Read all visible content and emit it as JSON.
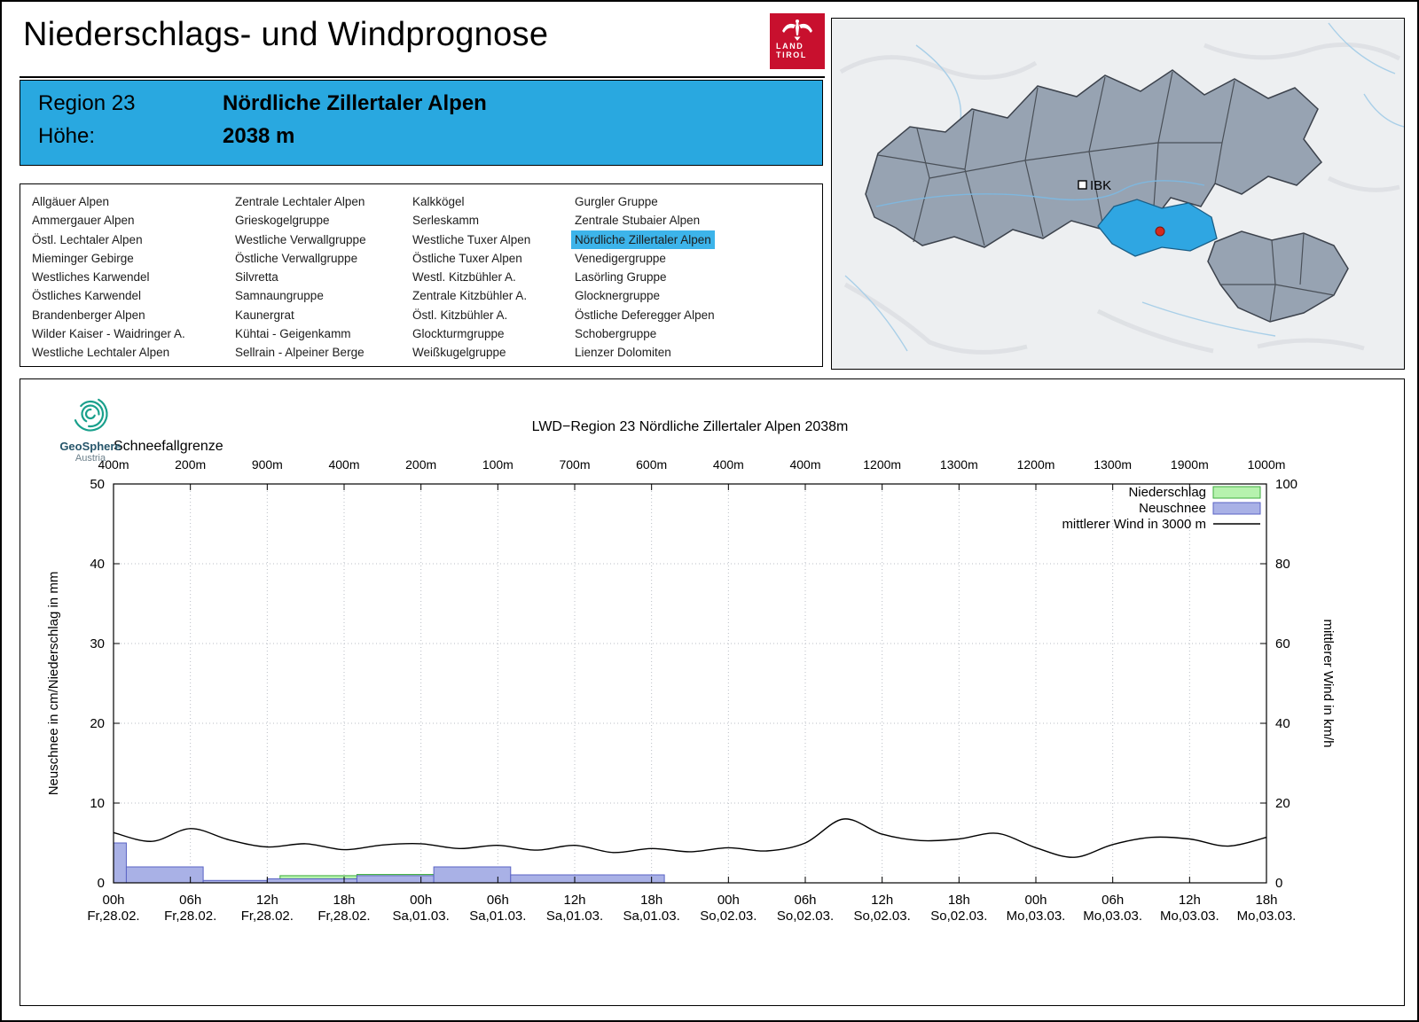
{
  "page": {
    "title": "Niederschlags- und Windprognose"
  },
  "logo": {
    "line1": "LAND",
    "line2": "TIROL"
  },
  "header": {
    "region_label": "Region 23",
    "region_name": "Nördliche Zillertaler Alpen",
    "altitude_label": "Höhe:",
    "altitude_value": "2038 m"
  },
  "map": {
    "city_label": "IBK",
    "highlight_color": "#2fa6e2",
    "region_fill": "#97a3b2"
  },
  "regions": {
    "selected": "Nördliche Zillertaler Alpen",
    "columns": [
      [
        "Allgäuer Alpen",
        "Ammergauer Alpen",
        "Östl. Lechtaler Alpen",
        "Mieminger Gebirge",
        "Westliches Karwendel",
        "Östliches Karwendel",
        "Brandenberger Alpen",
        "Wilder Kaiser - Waidringer A.",
        "Westliche Lechtaler Alpen"
      ],
      [
        "Zentrale Lechtaler Alpen",
        "Grieskogelgruppe",
        "Westliche Verwallgruppe",
        "Östliche Verwallgruppe",
        "Silvretta",
        "Samnaungruppe",
        "Kaunergrat",
        "Kühtai - Geigenkamm",
        "Sellrain - Alpeiner Berge"
      ],
      [
        "Kalkkögel",
        "Serleskamm",
        "Westliche Tuxer Alpen",
        "Östliche Tuxer Alpen",
        "Westl. Kitzbühler A.",
        "Zentrale Kitzbühler A.",
        "Östl. Kitzbühler A.",
        "Glockturmgruppe",
        "Weißkugelgruppe"
      ],
      [
        "Gurgler Gruppe",
        "Zentrale Stubaier Alpen",
        "Nördliche Zillertaler Alpen",
        "Venedigergruppe",
        "Lasörling Gruppe",
        "Glocknergruppe",
        "Östliche Deferegger Alpen",
        "Schobergruppe",
        "Lienzer Dolomiten"
      ]
    ]
  },
  "geosphere": {
    "name": "GeoSphere",
    "country": "Austria"
  },
  "chart_data": {
    "type": "bar",
    "title": "LWD−Region 23 Nördliche Zillertaler Alpen 2038m",
    "snowline_label": "Schneefallgrenze",
    "snowline_values": [
      "400m",
      "200m",
      "900m",
      "400m",
      "200m",
      "100m",
      "700m",
      "600m",
      "400m",
      "400m",
      "1200m",
      "1300m",
      "1200m",
      "1300m",
      "1900m",
      "1000m"
    ],
    "ylabel_left": "Neuschnee in cm/Niederschlag in mm",
    "ylabel_right": "mittlerer Wind in km/h",
    "ylim_left": [
      0,
      50
    ],
    "ylim_right": [
      0,
      100
    ],
    "grid": true,
    "legend_position": "top-right",
    "total_hours": 90,
    "x_ticks": [
      {
        "h": "00h",
        "d": "Fr,28.02."
      },
      {
        "h": "06h",
        "d": "Fr,28.02."
      },
      {
        "h": "12h",
        "d": "Fr,28.02."
      },
      {
        "h": "18h",
        "d": "Fr,28.02."
      },
      {
        "h": "00h",
        "d": "Sa,01.03."
      },
      {
        "h": "06h",
        "d": "Sa,01.03."
      },
      {
        "h": "12h",
        "d": "Sa,01.03."
      },
      {
        "h": "18h",
        "d": "Sa,01.03."
      },
      {
        "h": "00h",
        "d": "So,02.03."
      },
      {
        "h": "06h",
        "d": "So,02.03."
      },
      {
        "h": "12h",
        "d": "So,02.03."
      },
      {
        "h": "18h",
        "d": "So,02.03."
      },
      {
        "h": "00h",
        "d": "Mo,03.03."
      },
      {
        "h": "06h",
        "d": "Mo,03.03."
      },
      {
        "h": "12h",
        "d": "Mo,03.03."
      },
      {
        "h": "18h",
        "d": "Mo,03.03."
      }
    ],
    "legend": [
      {
        "label": "Niederschlag",
        "type": "box",
        "color": "#b6f2ae",
        "border": "#3fae3f"
      },
      {
        "label": "Neuschnee",
        "type": "box",
        "color": "#a9b1e6",
        "border": "#5a63c4"
      },
      {
        "label": "mittlerer Wind in 3000 m",
        "type": "line",
        "color": "#000000"
      }
    ],
    "colors": {
      "niederschlag_fill": "#b6f2ae",
      "niederschlag_stroke": "#3fae3f",
      "neuschnee_fill": "#a9b1e6",
      "neuschnee_stroke": "#5a63c4",
      "wind": "#000000"
    },
    "niederschlag_segments_mm": [
      {
        "from": 13,
        "to": 19,
        "value": 0.9
      },
      {
        "from": 19,
        "to": 25,
        "value": 1.05
      }
    ],
    "neuschnee_segments_cm": [
      {
        "from": 0,
        "to": 1,
        "value": 5
      },
      {
        "from": 1,
        "to": 7,
        "value": 2
      },
      {
        "from": 7,
        "to": 12,
        "value": 0.3
      },
      {
        "from": 12,
        "to": 19,
        "value": 0.5
      },
      {
        "from": 19,
        "to": 25,
        "value": 0.9
      },
      {
        "from": 25,
        "to": 31,
        "value": 2
      },
      {
        "from": 31,
        "to": 43,
        "value": 1
      }
    ],
    "wind_kmh": {
      "step_hours": 3,
      "values": [
        12.6,
        10.4,
        13.6,
        10.8,
        9.0,
        9.8,
        8.3,
        9.5,
        9.8,
        8.6,
        9.4,
        8.2,
        9.4,
        7.6,
        8.6,
        7.8,
        8.8,
        8.0,
        10.0,
        16.0,
        12.2,
        10.6,
        11.0,
        12.4,
        8.8,
        6.4,
        9.6,
        11.4,
        11.0,
        9.2,
        11.4
      ]
    }
  }
}
